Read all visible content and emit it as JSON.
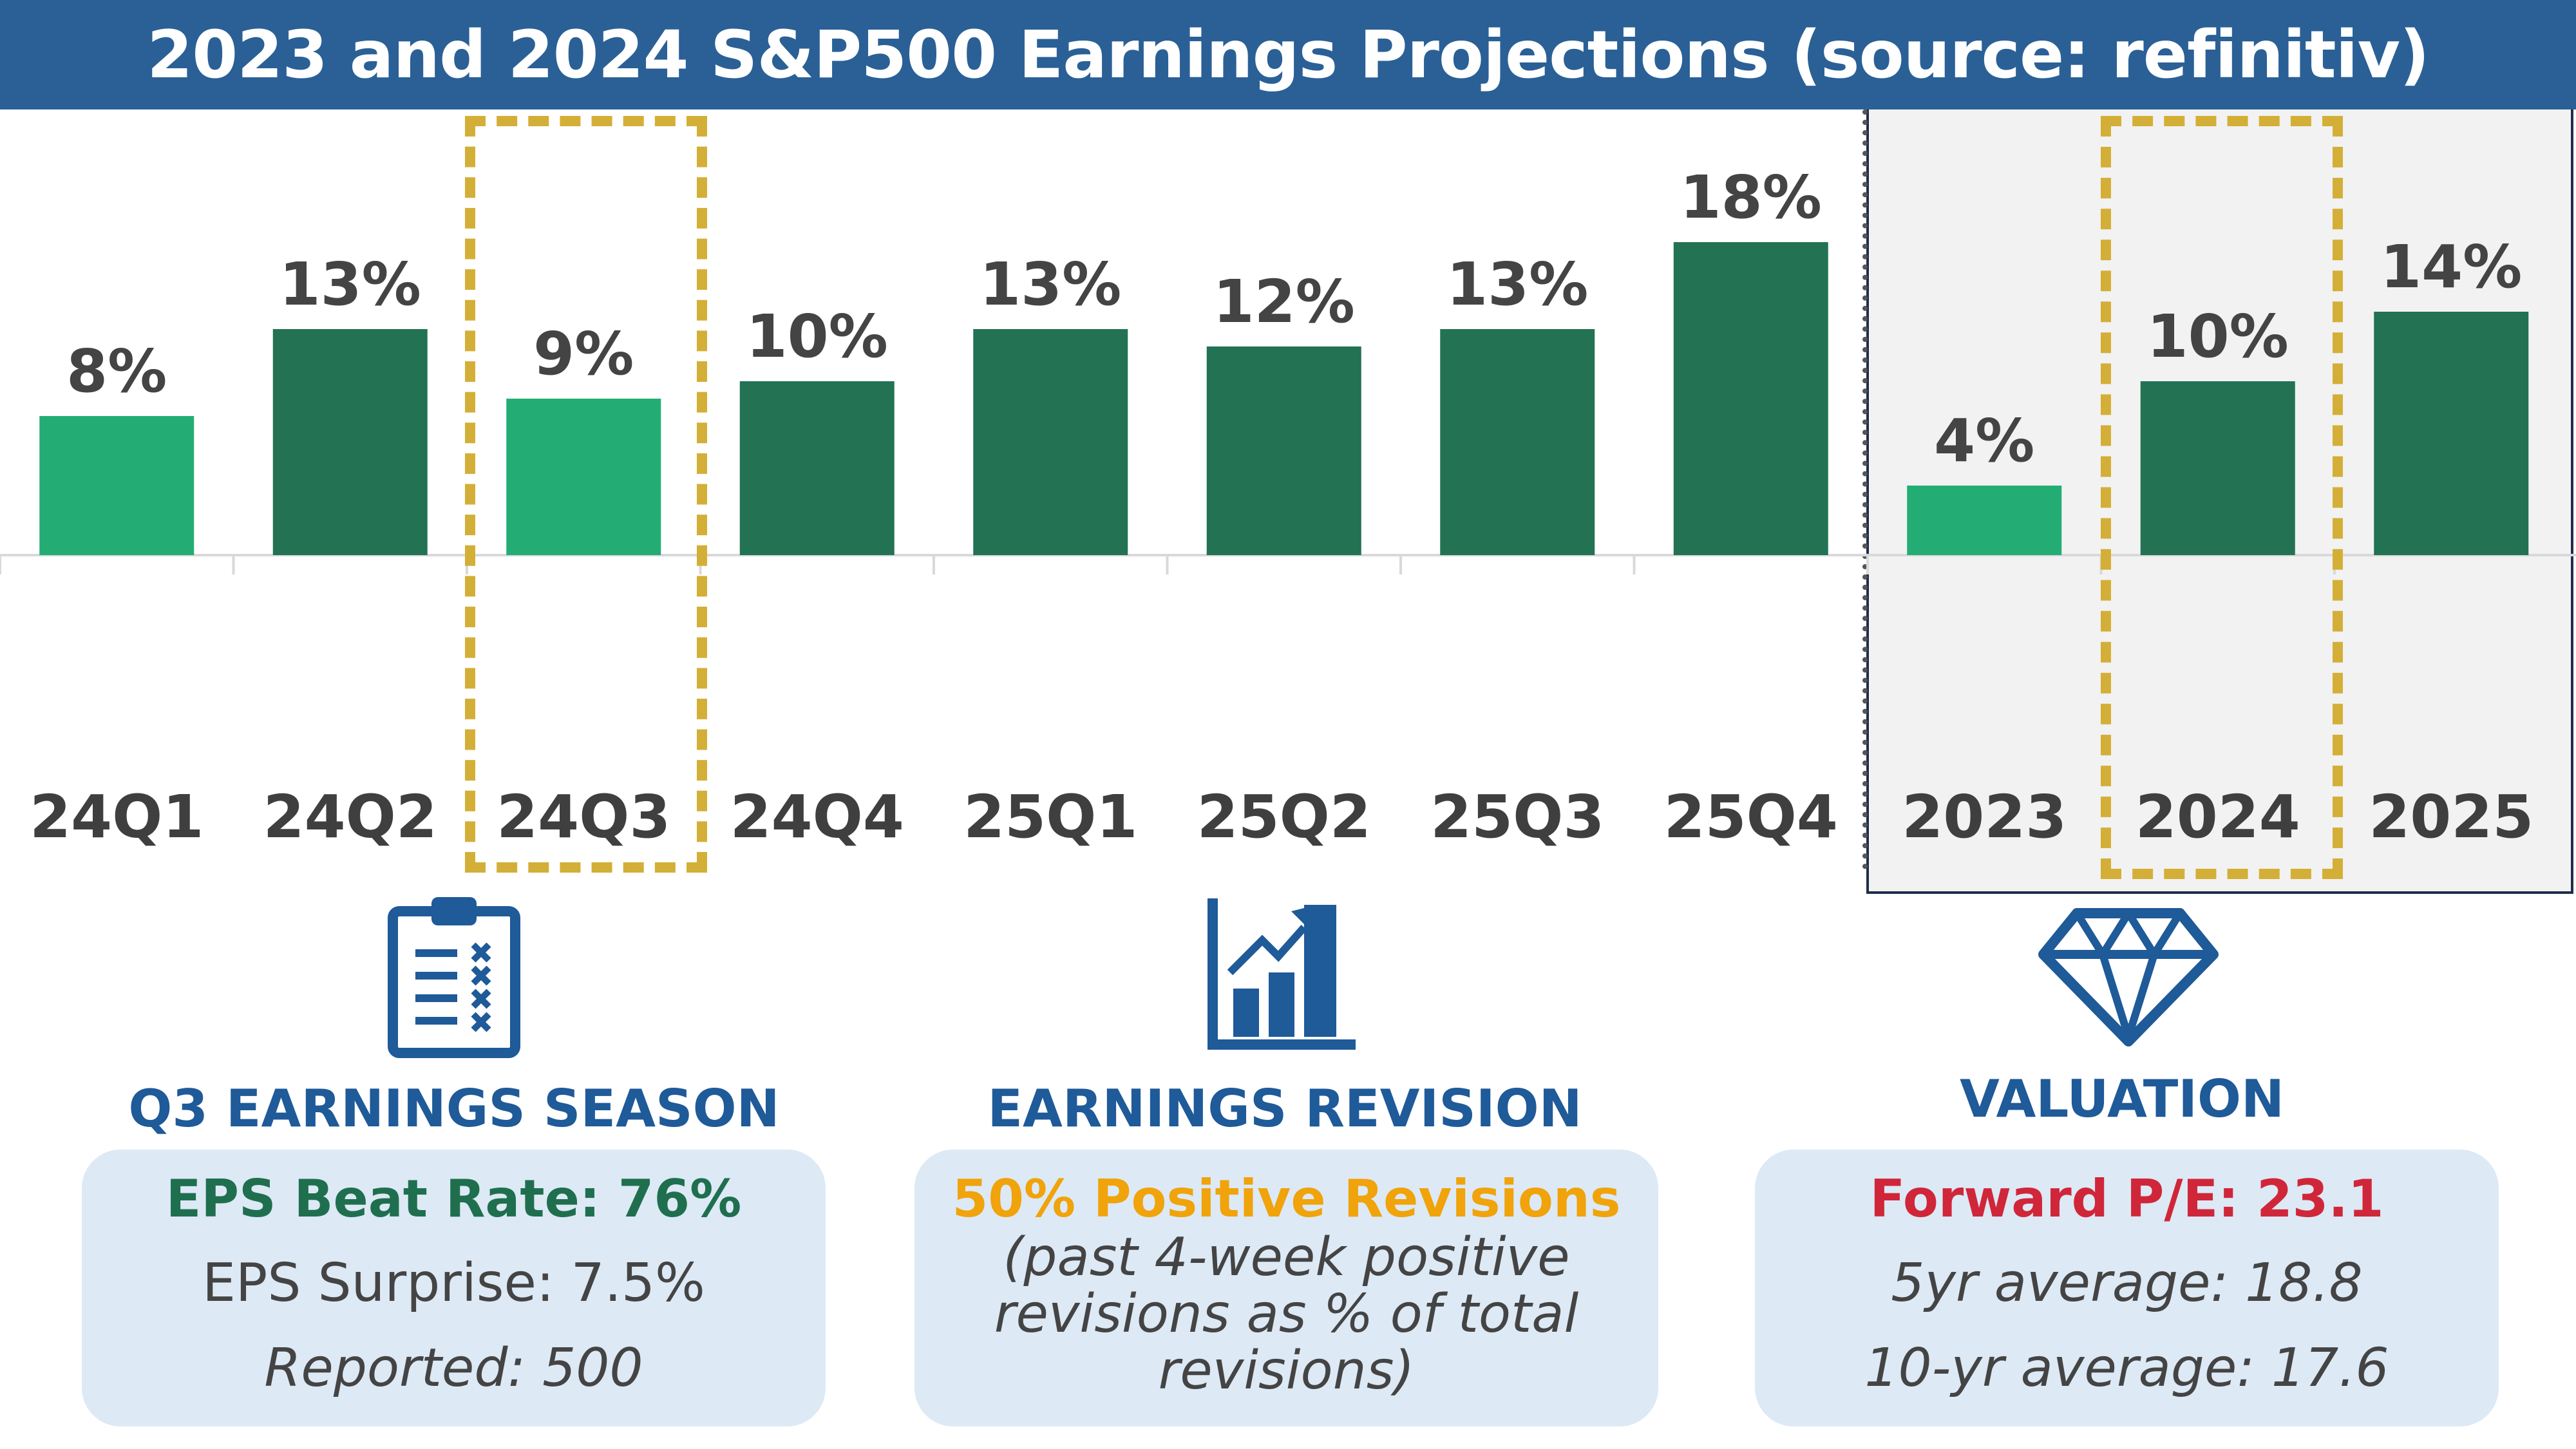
{
  "title": "2023 and 2024 S&P500 Earnings Projections (source: refinitiv)",
  "colors": {
    "title_bg": "#2a6096",
    "bar_light": "#23ad74",
    "bar_dark": "#227253",
    "highlight": "#d4af37",
    "section_blue": "#1f5a99",
    "card_bg": "#dde9f5",
    "eps_green": "#1f6f4f",
    "revision_orange": "#f0a30a",
    "valuation_red": "#d0263a"
  },
  "chart_data": {
    "type": "bar",
    "title": "2023 and 2024 S&P500 Earnings Projections (source: refinitiv)",
    "xlabel": "",
    "ylabel": "",
    "ylim": [
      0,
      20
    ],
    "grid": false,
    "categories": [
      "24Q1",
      "24Q2",
      "24Q3",
      "24Q4",
      "25Q1",
      "25Q2",
      "25Q3",
      "25Q4",
      "2023",
      "2024",
      "2025"
    ],
    "values": [
      8,
      13,
      9,
      10,
      13,
      12,
      13,
      18,
      4,
      10,
      14
    ],
    "labels": [
      "8%",
      "13%",
      "9%",
      "10%",
      "13%",
      "12%",
      "13%",
      "18%",
      "4%",
      "10%",
      "14%"
    ],
    "shade": [
      "light",
      "dark",
      "light",
      "dark",
      "dark",
      "dark",
      "dark",
      "dark",
      "light",
      "dark",
      "dark"
    ],
    "highlighted": [
      "24Q3",
      "2024"
    ]
  },
  "sections": {
    "earnings_season": {
      "title": "Q3 EARNINGS SEASON",
      "icon": "clipboard-checklist-icon",
      "headline": "EPS Beat Rate: 76%",
      "line1": "EPS Surprise: 7.5%",
      "line2": "Reported: 500"
    },
    "earnings_revision": {
      "title": "EARNINGS REVISION",
      "icon": "rising-bar-chart-icon",
      "headline": "50% Positive Revisions",
      "line1": "(past 4-week positive",
      "line2": "revisions as % of total",
      "line3": "revisions)"
    },
    "valuation": {
      "title": "VALUATION",
      "icon": "diamond-icon",
      "headline": "Forward P/E: 23.1",
      "line1": "5yr average: 18.8",
      "line2": "10-yr average: 17.6"
    }
  }
}
